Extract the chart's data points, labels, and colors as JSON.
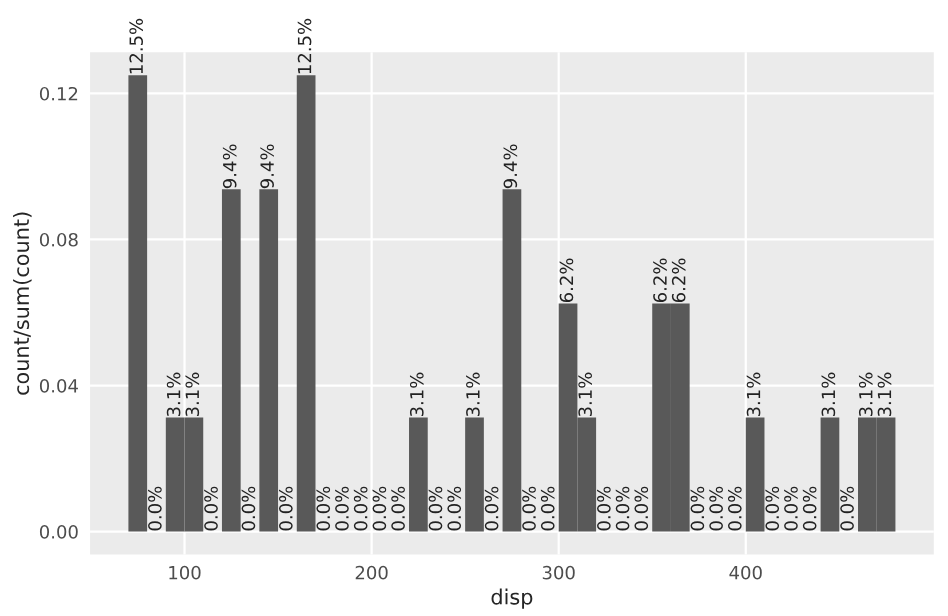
{
  "chart_data": {
    "type": "histogram",
    "xlabel": "disp",
    "ylabel": "count/sum(count)",
    "bins": [
      70,
      80,
      90,
      100,
      110,
      120,
      130,
      140,
      150,
      160,
      170,
      180,
      190,
      200,
      210,
      220,
      230,
      240,
      250,
      260,
      270,
      280,
      290,
      300,
      310,
      320,
      330,
      340,
      350,
      360,
      370,
      380,
      390,
      400,
      410,
      420,
      430,
      440,
      450,
      460,
      470,
      480
    ],
    "values": [
      0.125,
      0,
      0.03125,
      0.03125,
      0,
      0.09375,
      0,
      0.09375,
      0,
      0.125,
      0,
      0,
      0,
      0,
      0,
      0.03125,
      0,
      0,
      0.03125,
      0,
      0.09375,
      0,
      0,
      0.0625,
      0.03125,
      0,
      0,
      0,
      0.0625,
      0.0625,
      0,
      0,
      0,
      0.03125,
      0,
      0,
      0,
      0.03125,
      0,
      0.03125,
      0.03125
    ],
    "value_labels": [
      "12.5%",
      "0.0%",
      "3.1%",
      "3.1%",
      "0.0%",
      "9.4%",
      "0.0%",
      "9.4%",
      "0.0%",
      "12.5%",
      "0.0%",
      "0.0%",
      "0.0%",
      "0.0%",
      "0.0%",
      "3.1%",
      "0.0%",
      "0.0%",
      "3.1%",
      "0.0%",
      "9.4%",
      "0.0%",
      "0.0%",
      "6.2%",
      "3.1%",
      "0.0%",
      "0.0%",
      "0.0%",
      "6.2%",
      "6.2%",
      "0.0%",
      "0.0%",
      "0.0%",
      "3.1%",
      "0.0%",
      "0.0%",
      "0.0%",
      "3.1%",
      "0.0%",
      "3.1%",
      "3.1%"
    ],
    "color": "#595959",
    "xlim": [
      49.5,
      500.5
    ],
    "xticks": [
      100,
      200,
      300,
      400
    ],
    "ylim": [
      -0.00625,
      0.13125
    ],
    "yticks": [
      {
        "value": 0,
        "label": "0.00"
      },
      {
        "value": 0.04,
        "label": "0.04"
      },
      {
        "value": 0.08,
        "label": "0.08"
      },
      {
        "value": 0.12,
        "label": "0.12"
      }
    ],
    "grid": true,
    "legend": false
  }
}
